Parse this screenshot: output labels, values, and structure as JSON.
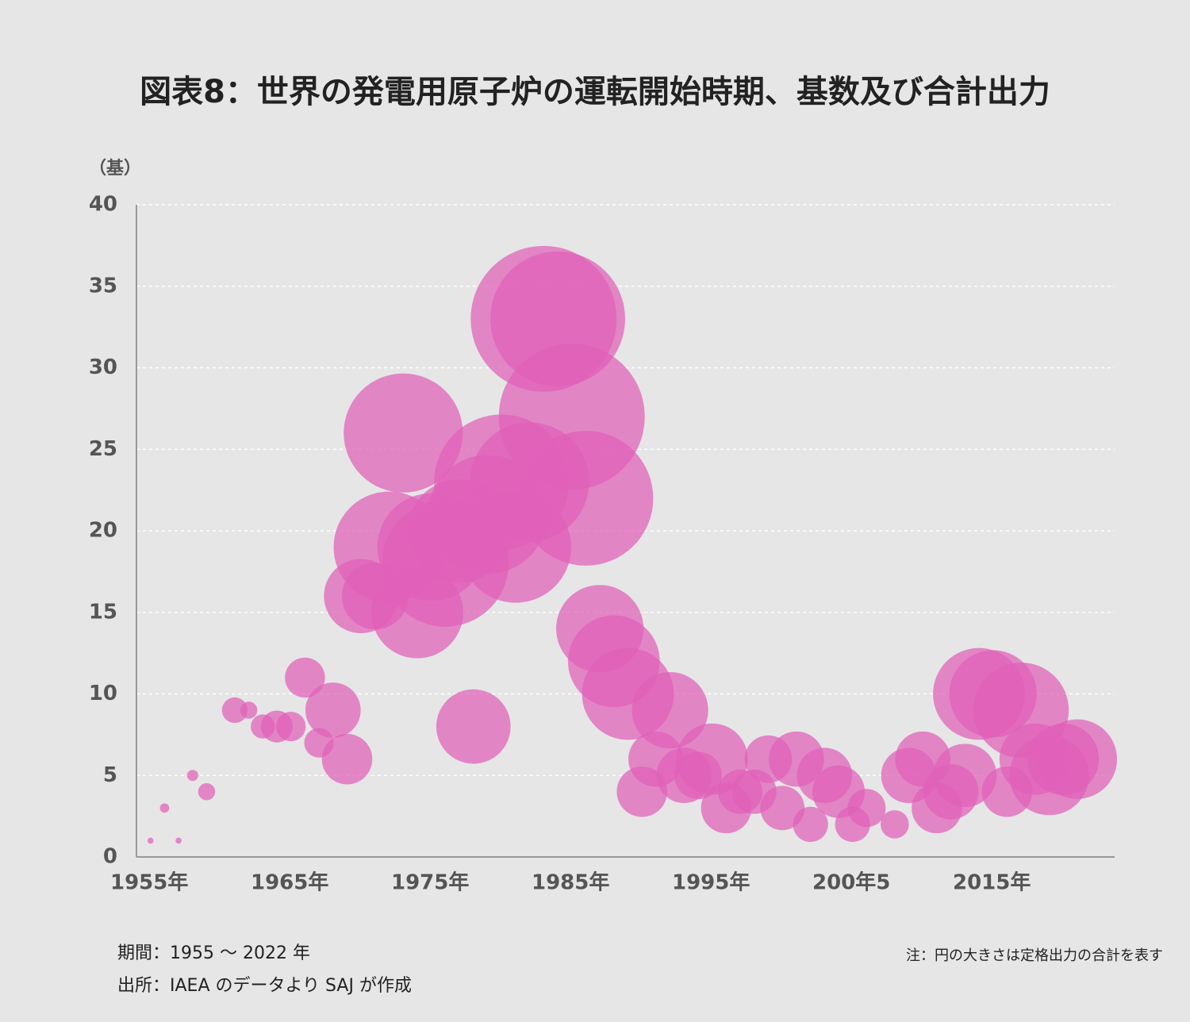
{
  "chart_data": {
    "type": "bubble",
    "title": "図表8：世界の発電用原子炉の運転開始時期、基数及び合計出力",
    "y_label": "（基）",
    "period_note": "期間：1955 〜 2022 年",
    "source_note": "出所：IAEA のデータより SAJ が作成",
    "size_note": "注：円の大きさは定格出力の合計を表す",
    "color": "#e060b8",
    "grid": true,
    "x": [
      1956,
      1957,
      1958,
      1959,
      1960,
      1962,
      1963,
      1964,
      1965,
      1966,
      1967,
      1968,
      1969,
      1970,
      1971,
      1972,
      1973,
      1974,
      1975,
      1976,
      1977,
      1978,
      1979,
      1980,
      1981,
      1982,
      1983,
      1984,
      1985,
      1986,
      1987,
      1988,
      1989,
      1990,
      1991,
      1992,
      1993,
      1994,
      1995,
      1996,
      1997,
      1998,
      1999,
      2000,
      2001,
      2002,
      2003,
      2004,
      2005,
      2006,
      2007,
      2009,
      2010,
      2011,
      2012,
      2013,
      2014,
      2015,
      2016,
      2017,
      2018,
      2019,
      2020,
      2021,
      2022
    ],
    "values": [
      1,
      3,
      1,
      5,
      4,
      9,
      9,
      8,
      8,
      8,
      11,
      7,
      9,
      6,
      16,
      16,
      19,
      26,
      15,
      19,
      18,
      20,
      8,
      21,
      23,
      19,
      23,
      33,
      33,
      27,
      22,
      14,
      12,
      10,
      4,
      6,
      9,
      5,
      5,
      6,
      3,
      4,
      4,
      6,
      3,
      6,
      2,
      5,
      4,
      2,
      3,
      2,
      5,
      6,
      3,
      4,
      5,
      10,
      10,
      4,
      9,
      6,
      5,
      6,
      6
    ],
    "sizes": [
      0.05,
      0.12,
      0.05,
      0.17,
      0.4,
      0.9,
      0.4,
      0.8,
      1.4,
      1.2,
      2.2,
      1.2,
      4.2,
      3.5,
      7.6,
      6.1,
      17,
      19.5,
      11.6,
      16,
      22,
      14.6,
      7.6,
      19.5,
      25,
      17,
      19.5,
      29.3,
      25,
      29.3,
      25,
      10.5,
      11.6,
      11.6,
      3.5,
      4.2,
      8,
      4.2,
      3.1,
      7,
      3.5,
      2.7,
      2.7,
      3.1,
      2.7,
      4.2,
      1.7,
      4.2,
      3.8,
      1.7,
      2,
      1.1,
      4.2,
      4.2,
      3.5,
      4.2,
      5.5,
      11.6,
      10.5,
      3.5,
      12.5,
      7,
      8.7,
      7,
      8.7
    ],
    "xlim": [
      1955,
      2025
    ],
    "xticks": [
      {
        "value": 1955,
        "label": "1955年"
      },
      {
        "value": 1965,
        "label": "1965年"
      },
      {
        "value": 1975,
        "label": "1975年"
      },
      {
        "value": 1985,
        "label": "1985年"
      },
      {
        "value": 1995,
        "label": "1995年"
      },
      {
        "value": 2005,
        "label": "200年5"
      },
      {
        "value": 2015,
        "label": "2015年"
      }
    ],
    "ylim": [
      0,
      40
    ],
    "yticks": [
      0,
      5,
      10,
      15,
      20,
      25,
      30,
      35,
      40
    ]
  }
}
